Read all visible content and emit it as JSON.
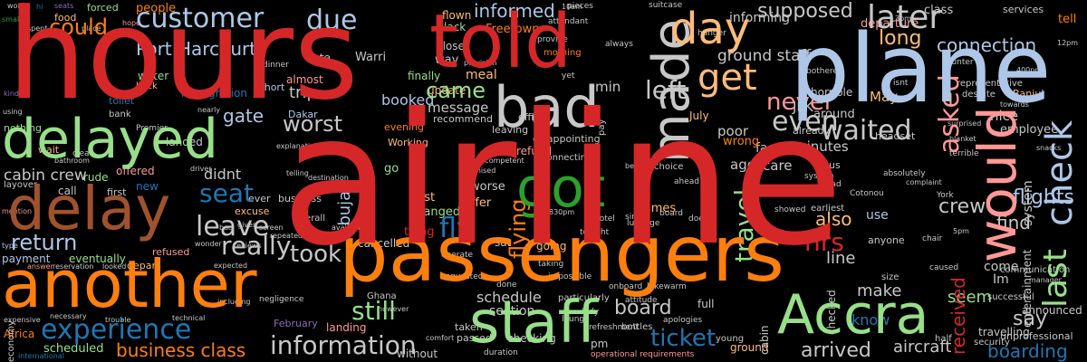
{
  "colors": {
    "background": "#000000",
    "red": "#d62728",
    "light_blue": "#aec7e8",
    "orange": "#ff7f0e",
    "light_orange": "#ffbb78",
    "light_green": "#98df8a",
    "green": "#2ca02c",
    "blue": "#1f77b4",
    "brown": "#a0522d",
    "purple": "#9467bd",
    "pink": "#ff9896",
    "grey": "#c7c7c7"
  },
  "words": {
    "airline": "airline",
    "hours": "hours",
    "told": "told",
    "plane": "plane",
    "passengers": "passengers",
    "another": "another",
    "delay": "delay",
    "delayed": "delayed",
    "day": "day",
    "staff": "staff",
    "accra": "Accra",
    "would": "would",
    "bad": "bad",
    "made": "made",
    "got": "got",
    "customer": "customer",
    "due": "due",
    "later": "later",
    "get": "get",
    "long": "long",
    "could": "could",
    "experience": "experience",
    "information": "information",
    "ticket": "ticket",
    "seat": "seat",
    "return": "return",
    "worst": "worst",
    "came": "came",
    "left": "left",
    "even": "even",
    "waited": "waited",
    "never": "never",
    "asked": "asked",
    "check": "check",
    "last": "last",
    "board": "board",
    "still": "still",
    "took": "took",
    "leave": "leave",
    "really": "really",
    "received": "received",
    "fly": "fly",
    "flying": "flying",
    "travel": "travel",
    "trip": "trip",
    "gate": "gate",
    "cabin_crew": "cabin crew",
    "crew": "crew",
    "hrs": "hrs",
    "abuja": "Abuja",
    "port_harcourt": "Port Harcourt",
    "business_class": "business class",
    "boarding": "boarding",
    "arrived": "arrived",
    "aircraft": "aircraft",
    "say": "say",
    "supposed": "supposed",
    "informed": "informed",
    "connection": "connection",
    "flights": "flights",
    "schedule": "schedule",
    "scheduled": "scheduled",
    "refund": "refund",
    "didnt": "didnt",
    "ground_staff": "ground staff",
    "people": "people",
    "flown": "flown",
    "forced": "forced",
    "lack": "lack",
    "freetown": "Freetown",
    "jfk": "JFK",
    "warri": "Warri",
    "dakar": "Dakar",
    "booked": "booked",
    "message": "message",
    "july": "July",
    "february": "February",
    "ghana": "Ghana",
    "africa": "Africa",
    "cancelled": "cancelled",
    "landed": "landed",
    "offered": "offered",
    "excuse": "excuse",
    "payment": "payment",
    "eventually": "eventually",
    "worse": "worse",
    "offer": "offer",
    "changed": "changed",
    "past": "past",
    "thing": "thing",
    "going": "going",
    "also": "also",
    "line": "line",
    "seem": "seem",
    "make": "make",
    "come": "come",
    "announced": "announced",
    "find": "find",
    "im": "Im",
    "know": "know",
    "employee": "employee",
    "care": "care",
    "minutes": "minutes",
    "ago": "ago",
    "fact": "fact",
    "poor": "poor",
    "wrong": "wrong",
    "horrible": "horrible",
    "around": "around",
    "update": "update",
    "finally": "finally",
    "meal": "meal",
    "way": "way",
    "close": "close",
    "late": "late",
    "food": "food",
    "water": "water",
    "toilet": "toilet",
    "immigration": "immigration",
    "bank": "bank",
    "cabin": "cabin",
    "call": "call",
    "first": "first",
    "new": "new",
    "nice": "nice",
    "may": "May",
    "pm": "pm",
    "sat": "sat",
    "go": "go",
    "use": "use",
    "services": "services",
    "tell": "tell",
    "class": "class",
    "min": "min",
    "short": "short",
    "back": "back",
    "almost": "almost",
    "premier": "Premier",
    "section": "section",
    "landing": "landing",
    "nothing": "nothing",
    "without": "without",
    "ground": "ground",
    "times": "times",
    "working": "Working",
    "entertainment": "entertainment",
    "system": "system",
    "travelling": "travelling",
    "unprofessional": "unprofessional",
    "depart": "depart",
    "refused": "refused",
    "economy": "economy",
    "recommend": "recommend",
    "leaving": "leaving",
    "office": "office",
    "evening": "evening",
    "morning": "morning",
    "provide": "provide",
    "attendant": "attendant",
    "informing": "informing",
    "departure": "departure",
    "headset": "headset",
    "already": "already",
    "bus": "bus",
    "checked": "checked",
    "rude": "rude",
    "layover": "layover",
    "hanger": "hanger",
    "bothered": "bothered",
    "banjul": "Banjul",
    "cotonou": "Cotonou",
    "earliest": "earliest",
    "despite": "despite",
    "counter": "counter",
    "expensive": "expensive",
    "necessary": "necessary",
    "trouble": "trouble",
    "international": "international",
    "answer": "answer",
    "reservation": "reservation",
    "looked": "looked",
    "ever": "ever",
    "business": "business",
    "overall": "overall",
    "available": "available",
    "promised": "promised",
    "connecting": "connecting",
    "particularly": "particularly",
    "lounge": "lounge",
    "lukewarm": "lukewarm",
    "full": "full",
    "bottles": "bottles",
    "apologies": "apologies",
    "young": "young",
    "however": "however",
    "refreshment": "refreshment",
    "operational_requirements": "operational requirements",
    "duration": "duration",
    "taken": "taken",
    "passed": "passed",
    "checking": "checking",
    "explanation": "explanation",
    "negligence": "negligence",
    "technical": "technical",
    "expected": "expected",
    "including": "including",
    "onboard": "onboard",
    "attitude": "attitude",
    "tonight": "tonight",
    "doesnt": "doesnt",
    "communication": "communication",
    "size": "size",
    "half": "half",
    "isnt": "isnt",
    "complaint": "complaint",
    "absolutely": "absolutely",
    "surprised": "surprised",
    "representative": "representative",
    "towards": "towards",
    "terrible": "terrible",
    "snacks": "snacks",
    "blanket": "blanket",
    "disappointing": "disappointing",
    "choice": "choice",
    "better": "better",
    "ahead": "ahead",
    "cost": "cost",
    "showed": "showed",
    "anyone": "anyone",
    "successful": "successful",
    "security": "security",
    "wait": "wait",
    "clear": "clear",
    "bathroom": "bathroom",
    "quite": "quite",
    "thus": "thus",
    "provision": "provision",
    "lost": "lost",
    "dinner": "dinner",
    "nearly": "nearly",
    "driver": "driver",
    "repeatedly": "repeatedly",
    "reviews": "reviews",
    "wonder": "wonder",
    "given": "given",
    "screen": "screen",
    "telling": "telling",
    "destination": "destination",
    "incompetent": "incompetent",
    "hotel": "hotel",
    "since": "since",
    "yet": "yet",
    "board_small": "board",
    "luggage": "luggage",
    "aircraft_small": "aircraft",
    "chair": "chair",
    "caused": "caused",
    "operate": "operate",
    "requested": "requested",
    "done": "done",
    "lady": "lady",
    "impossible": "impossible",
    "taking": "taking",
    "manager": "manager",
    "spent": "spent",
    "using": "using",
    "mention": "mention",
    "small": "small",
    "bad_small": "bad",
    "comfort": "comfort",
    "option": "option",
    "perhaps": "perhaps",
    "sort": "sort",
    "terribly": "terribly",
    "provided": "provided",
    "receive": "receive",
    "always": "always",
    "another_small": "another",
    "next": "next",
    "stated": "stated",
    "suitcase": "suitcase",
    "turned": "turned",
    "hope": "hope",
    "airport": "airport",
    "pieces": "pieces",
    "place": "place",
    "sure": "sure",
    "wont": "wont",
    "keep": "keep",
    "ipad": "iPad",
    "read": "read",
    "one": "one",
    "time": "time",
    "flight": "flight",
    "york": "York",
    "seat_small": "seat",
    "kind": "kind",
    "leg": "leg",
    "till": "till",
    "type": "type",
    "sitting": "sitting",
    "put": "put",
    "door": "door",
    "hour": "hour",
    "said": "said",
    "know_small": "know",
    "hi": "hi",
    "seats": "seats",
    "pay": "pay",
    "arrival": "arrival",
    "quality": "quality",
    "400pm": "400pm",
    "830pm": "830pm",
    "5pm": "5pm",
    "3pm": "3pm",
    "10am": "10am",
    "12pm": "12pm"
  }
}
